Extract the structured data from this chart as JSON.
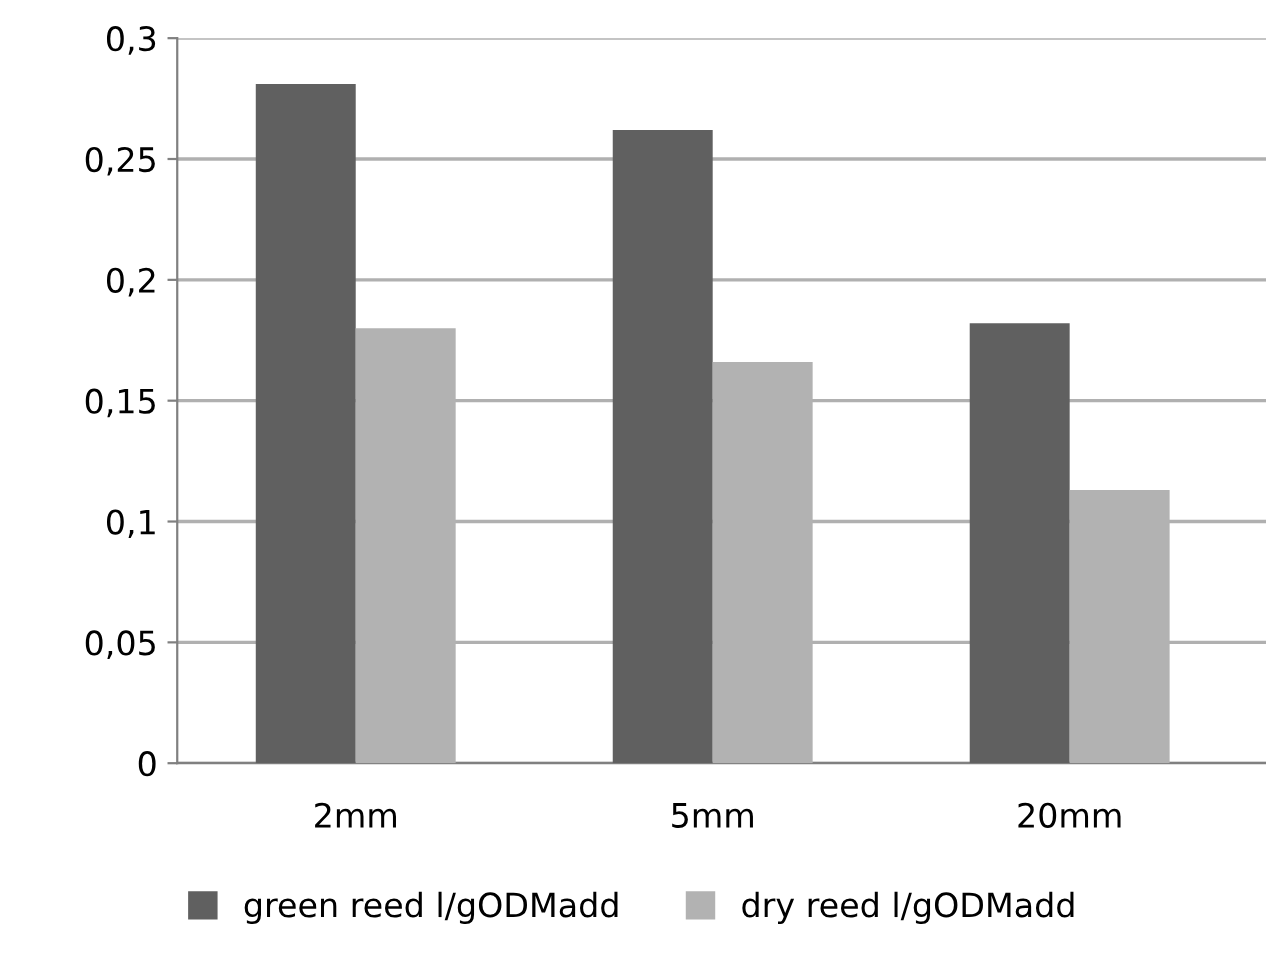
{
  "chart_data": {
    "type": "bar",
    "categories": [
      "2mm",
      "5mm",
      "20mm"
    ],
    "series": [
      {
        "name": "green reed l/gODMadd",
        "color": "#606060",
        "values": [
          0.281,
          0.262,
          0.182
        ]
      },
      {
        "name": "dry reed l/gODMadd",
        "color": "#b2b2b2",
        "values": [
          0.18,
          0.166,
          0.113
        ]
      }
    ],
    "ylim": [
      0,
      0.3
    ],
    "yticks": [
      {
        "value": 0,
        "label": "0"
      },
      {
        "value": 0.05,
        "label": "0,05"
      },
      {
        "value": 0.1,
        "label": "0,1"
      },
      {
        "value": 0.15,
        "label": "0,15"
      },
      {
        "value": 0.2,
        "label": "0,2"
      },
      {
        "value": 0.25,
        "label": "0,25"
      },
      {
        "value": 0.3,
        "label": "0,3"
      }
    ],
    "grid": "y",
    "legend": "bottom"
  }
}
